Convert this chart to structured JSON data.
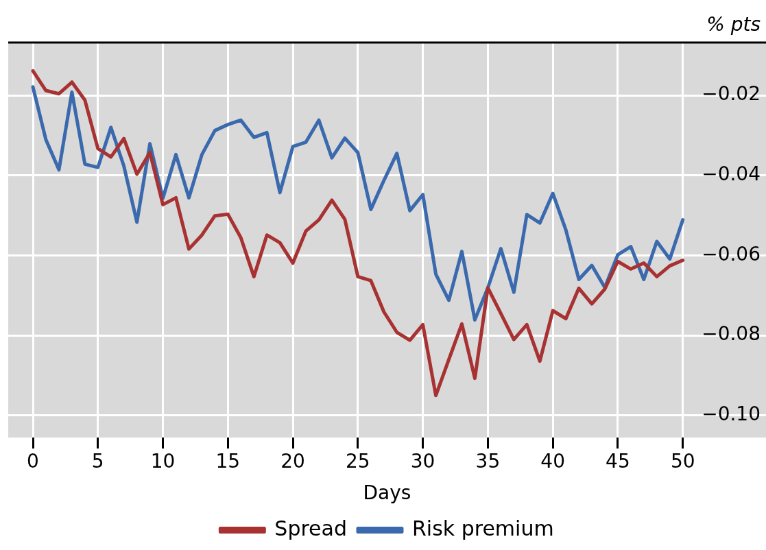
{
  "chart_data": {
    "type": "line",
    "xlabel": "Days",
    "ylabel": "% pts",
    "x": [
      0,
      1,
      2,
      3,
      4,
      5,
      6,
      7,
      8,
      9,
      10,
      11,
      12,
      13,
      14,
      15,
      16,
      17,
      18,
      19,
      20,
      21,
      22,
      23,
      24,
      25,
      26,
      27,
      28,
      29,
      30,
      31,
      32,
      33,
      34,
      35,
      36,
      37,
      38,
      39,
      40,
      41,
      42,
      43,
      44,
      45,
      46,
      47,
      48,
      49,
      50
    ],
    "series": [
      {
        "name": "Spread",
        "color": "#a83232",
        "values": [
          -0.0139,
          -0.0188,
          -0.0196,
          -0.0167,
          -0.0212,
          -0.0333,
          -0.0354,
          -0.0308,
          -0.0397,
          -0.0343,
          -0.0473,
          -0.0456,
          -0.0584,
          -0.0549,
          -0.0501,
          -0.0497,
          -0.0556,
          -0.0653,
          -0.0549,
          -0.0568,
          -0.0619,
          -0.0539,
          -0.0511,
          -0.0462,
          -0.051,
          -0.0653,
          -0.0663,
          -0.0741,
          -0.0792,
          -0.0812,
          -0.0773,
          -0.095,
          -0.086,
          -0.0771,
          -0.0907,
          -0.0681,
          -0.0745,
          -0.081,
          -0.0773,
          -0.0864,
          -0.0738,
          -0.0758,
          -0.0682,
          -0.0721,
          -0.0684,
          -0.0615,
          -0.0634,
          -0.0619,
          -0.0653,
          -0.0626,
          -0.0612
        ]
      },
      {
        "name": "Risk premium",
        "color": "#3a6aad",
        "values": [
          -0.0179,
          -0.0311,
          -0.0386,
          -0.0192,
          -0.0372,
          -0.038,
          -0.028,
          -0.0377,
          -0.0517,
          -0.0321,
          -0.0457,
          -0.0348,
          -0.0456,
          -0.0348,
          -0.0288,
          -0.0273,
          -0.0262,
          -0.0305,
          -0.0293,
          -0.0443,
          -0.0328,
          -0.0317,
          -0.0262,
          -0.0356,
          -0.0307,
          -0.0343,
          -0.0485,
          -0.0413,
          -0.0345,
          -0.0488,
          -0.0448,
          -0.0647,
          -0.0712,
          -0.059,
          -0.0761,
          -0.0681,
          -0.0583,
          -0.0692,
          -0.0498,
          -0.0519,
          -0.0445,
          -0.0536,
          -0.066,
          -0.0625,
          -0.068,
          -0.0598,
          -0.0578,
          -0.066,
          -0.0565,
          -0.0609,
          -0.0511
        ]
      }
    ],
    "xlim": [
      -1.9,
      56.4
    ],
    "ylim": [
      -0.1055,
      -0.0068
    ],
    "xticks": [
      0,
      5,
      10,
      15,
      20,
      25,
      30,
      35,
      40,
      45,
      50
    ],
    "yticks": [
      {
        "value": -0.02,
        "label": "−0.02"
      },
      {
        "value": -0.04,
        "label": "−0.04"
      },
      {
        "value": -0.06,
        "label": "−0.06"
      },
      {
        "value": -0.08,
        "label": "−0.08"
      },
      {
        "value": -0.1,
        "label": "−0.10"
      }
    ],
    "grid": true,
    "legend": "bottom",
    "marker": "none",
    "line_style": "solid"
  }
}
